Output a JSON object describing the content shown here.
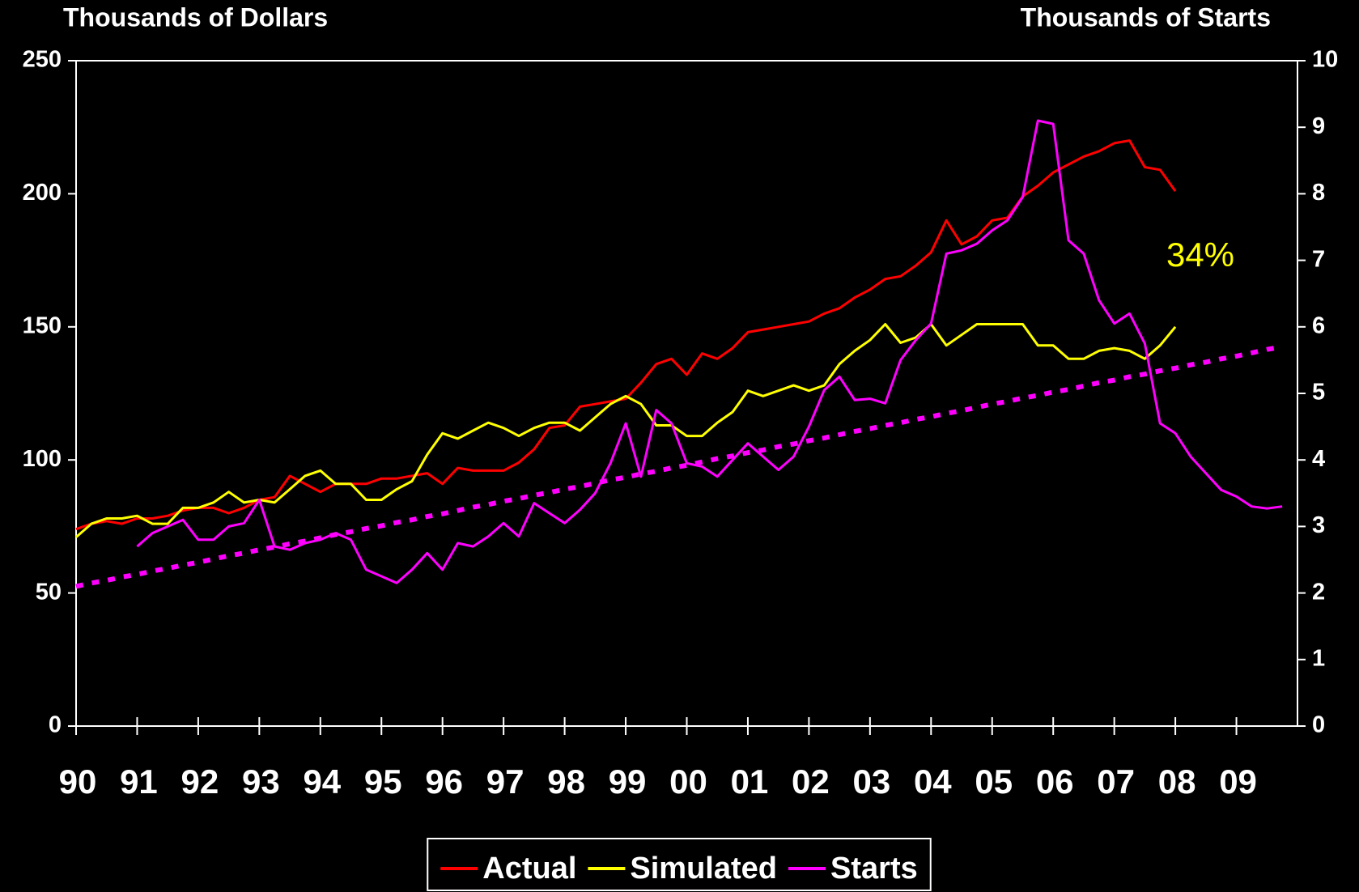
{
  "chart_data": {
    "type": "line",
    "y_label": "Thousands of Dollars",
    "y2_label": "Thousands of Starts",
    "annotation": "34%",
    "annotation_color": "#ffff00",
    "categories": [
      "90",
      null,
      null,
      null,
      "91",
      null,
      null,
      null,
      "92",
      null,
      null,
      null,
      "93",
      null,
      null,
      null,
      "94",
      null,
      null,
      null,
      "95",
      null,
      null,
      null,
      "96",
      null,
      null,
      null,
      "97",
      null,
      null,
      null,
      "98",
      null,
      null,
      null,
      "99",
      null,
      null,
      null,
      "00",
      null,
      null,
      null,
      "01",
      null,
      null,
      null,
      "02",
      null,
      null,
      null,
      "03",
      null,
      null,
      null,
      "04",
      null,
      null,
      null,
      "05",
      null,
      null,
      null,
      "06",
      null,
      null,
      null,
      "07",
      null,
      null,
      null,
      "08",
      null,
      null,
      null,
      "09",
      null,
      null,
      null
    ],
    "ylim": [
      0,
      250
    ],
    "yticks": [
      0,
      50,
      100,
      150,
      200,
      250
    ],
    "y2lim": [
      0,
      10
    ],
    "y2ticks": [
      0,
      1,
      2,
      3,
      4,
      5,
      6,
      7,
      8,
      9,
      10
    ],
    "grid": false,
    "legend": "bottom",
    "series": [
      {
        "name": "Actual",
        "color": "#ff0000",
        "values": [
          74,
          76,
          77,
          76,
          78,
          78,
          79,
          81,
          82,
          82,
          80,
          82,
          85,
          86,
          94,
          91,
          88,
          91,
          91,
          91,
          93,
          93,
          94,
          95,
          91,
          97,
          96,
          96,
          96,
          99,
          104,
          112,
          113,
          120,
          121,
          122,
          123,
          129,
          136,
          138,
          132,
          140,
          138,
          142,
          148,
          149,
          150,
          151,
          152,
          155,
          157,
          161,
          164,
          168,
          169,
          173,
          178,
          190,
          181,
          184,
          190,
          191,
          199,
          203,
          208,
          211,
          214,
          216,
          219,
          220,
          210,
          209,
          201,
          null,
          null,
          null,
          null,
          null,
          null,
          null
        ]
      },
      {
        "name": "Simulated",
        "color": "#ffff00",
        "values": [
          71,
          76,
          78,
          78,
          79,
          76,
          76,
          82,
          82,
          84,
          88,
          84,
          85,
          84,
          89,
          94,
          96,
          91,
          91,
          85,
          85,
          89,
          92,
          102,
          110,
          108,
          111,
          114,
          112,
          109,
          112,
          114,
          114,
          111,
          116,
          121,
          124,
          121,
          113,
          113,
          109,
          109,
          114,
          118,
          126,
          124,
          126,
          128,
          126,
          128,
          136,
          141,
          145,
          151,
          144,
          146,
          151,
          143,
          147,
          151,
          151,
          151,
          151,
          143,
          143,
          138,
          138,
          141,
          142,
          141,
          138,
          143,
          150,
          null,
          null,
          null,
          null,
          null,
          null,
          null
        ]
      },
      {
        "name": "Starts",
        "color": "#ff00ff",
        "axis": "y2",
        "values": [
          null,
          null,
          null,
          null,
          2.7,
          2.9,
          3.0,
          3.1,
          2.8,
          2.8,
          3.0,
          3.05,
          3.4,
          2.7,
          2.65,
          2.75,
          2.8,
          2.9,
          2.8,
          2.35,
          2.25,
          2.15,
          2.35,
          2.6,
          2.35,
          2.75,
          2.7,
          2.85,
          3.05,
          2.85,
          3.35,
          3.2,
          3.05,
          3.25,
          3.5,
          3.95,
          4.55,
          3.75,
          4.75,
          4.55,
          3.95,
          3.9,
          3.75,
          4.0,
          4.25,
          4.05,
          3.85,
          4.05,
          4.5,
          5.05,
          5.25,
          4.9,
          4.92,
          4.85,
          5.5,
          5.8,
          6.05,
          7.1,
          7.15,
          7.25,
          7.45,
          7.6,
          7.95,
          9.1,
          9.05,
          7.3,
          7.1,
          6.4,
          6.05,
          6.2,
          5.75,
          4.55,
          4.4,
          4.05,
          3.8,
          3.55,
          3.45,
          3.3,
          3.27,
          3.3
        ]
      },
      {
        "color": "#ff00ff",
        "axis": "y2",
        "dashed": true,
        "values": [
          2.1,
          2.15,
          2.19,
          2.24,
          2.28,
          2.33,
          2.37,
          2.42,
          2.46,
          2.51,
          2.56,
          2.6,
          2.65,
          2.69,
          2.74,
          2.78,
          2.83,
          2.88,
          2.92,
          2.97,
          3.01,
          3.06,
          3.1,
          3.15,
          3.19,
          3.24,
          3.29,
          3.33,
          3.38,
          3.42,
          3.47,
          3.51,
          3.56,
          3.6,
          3.65,
          3.7,
          3.74,
          3.79,
          3.83,
          3.88,
          3.92,
          3.97,
          4.02,
          4.06,
          4.11,
          4.15,
          4.2,
          4.24,
          4.29,
          4.33,
          4.38,
          4.43,
          4.47,
          4.52,
          4.56,
          4.61,
          4.65,
          4.7,
          4.74,
          4.79,
          4.84,
          4.88,
          4.93,
          4.97,
          5.02,
          5.06,
          5.11,
          5.16,
          5.2,
          5.25,
          5.29,
          5.34,
          5.38,
          5.43,
          5.47,
          5.52,
          5.56,
          5.61,
          5.66,
          5.7
        ]
      }
    ]
  }
}
